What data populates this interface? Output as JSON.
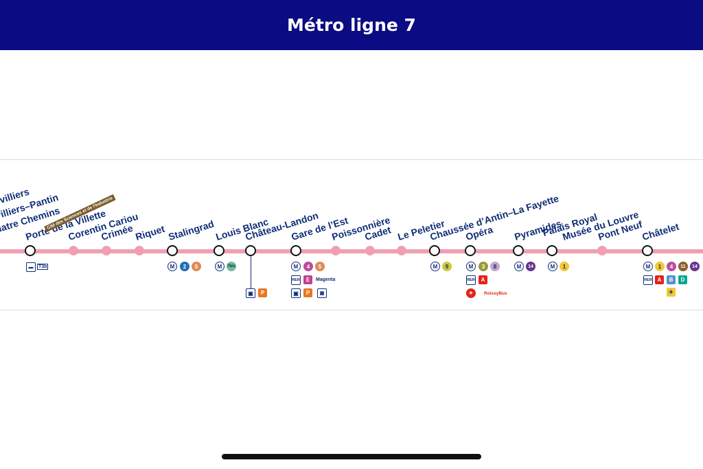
{
  "header": {
    "title": "Métro ligne 7"
  },
  "stations": [
    {
      "name": "villiers",
      "type": "corr"
    },
    {
      "name": "villiers–Pantin",
      "type": "text"
    },
    {
      "name": "uatre Chemins",
      "type": "text"
    },
    {
      "name": "Porte de la Villette",
      "type": "corr"
    },
    {
      "name": "Corentin Cariou",
      "type": "regular"
    },
    {
      "name": "Crimée",
      "type": "regular"
    },
    {
      "name": "Riquet",
      "type": "regular"
    },
    {
      "name": "Stalingrad",
      "type": "corr"
    },
    {
      "name": "Louis Blanc",
      "type": "corr"
    },
    {
      "name": "Château-Landon",
      "type": "corr"
    },
    {
      "name": "Gare de l’Est",
      "type": "corr"
    },
    {
      "name": "Poissonnière",
      "type": "regular"
    },
    {
      "name": "Cadet",
      "type": "regular"
    },
    {
      "name": "Le Peletier",
      "type": "regular"
    },
    {
      "name": "Chaussée d’Antin–La Fayette",
      "type": "corr"
    },
    {
      "name": "Opéra",
      "type": "corr"
    },
    {
      "name": "Pyramides",
      "type": "corr"
    },
    {
      "name": "Palais Royal",
      "type": "corr"
    },
    {
      "name": "Musée du Louvre",
      "type": "text"
    },
    {
      "name": "Pont Neuf",
      "type": "regular"
    },
    {
      "name": "Châtelet",
      "type": "corr"
    }
  ],
  "annotations": {
    "cite": "Cité des Sciences et de l'Industrie",
    "tram": "T3b",
    "magenta": "Magenta",
    "roissybus": "RoissyBus"
  },
  "connections": {
    "metro_symbol": "M",
    "rer_symbol": "RER",
    "parking_symbol": "P",
    "stalingrad": [
      "2",
      "5"
    ],
    "louis_blanc": [
      "7bis"
    ],
    "gare_de_l_est": [
      "4",
      "5"
    ],
    "gare_de_l_est_rer": [
      "E"
    ],
    "chaussee_dantin": [
      "9"
    ],
    "opera": [
      "3",
      "8"
    ],
    "opera_rer": [
      "A"
    ],
    "pyramides": [
      "14"
    ],
    "palais_royal": [
      "1"
    ],
    "chatelet": [
      "1",
      "4",
      "11",
      "14"
    ],
    "chatelet_rer": [
      "A",
      "B",
      "D"
    ]
  },
  "colors": {
    "header_bg": "#0b0b84",
    "line": "#f09fb1",
    "station_text": "#0f2d75",
    "m1": "#f2c931",
    "m2": "#216eb4",
    "m3": "#9a993a",
    "m4": "#bb4d98",
    "m5": "#de8b53",
    "m7bis": "#79bb92",
    "m8": "#c5a3ca",
    "m9": "#cdc83f",
    "m11": "#8d5e2a",
    "m14": "#67328e",
    "rerA": "#e2231a",
    "rerB": "#5291ce",
    "rerD": "#00a88f",
    "rerE": "#c04191",
    "parking": "#e87722"
  }
}
